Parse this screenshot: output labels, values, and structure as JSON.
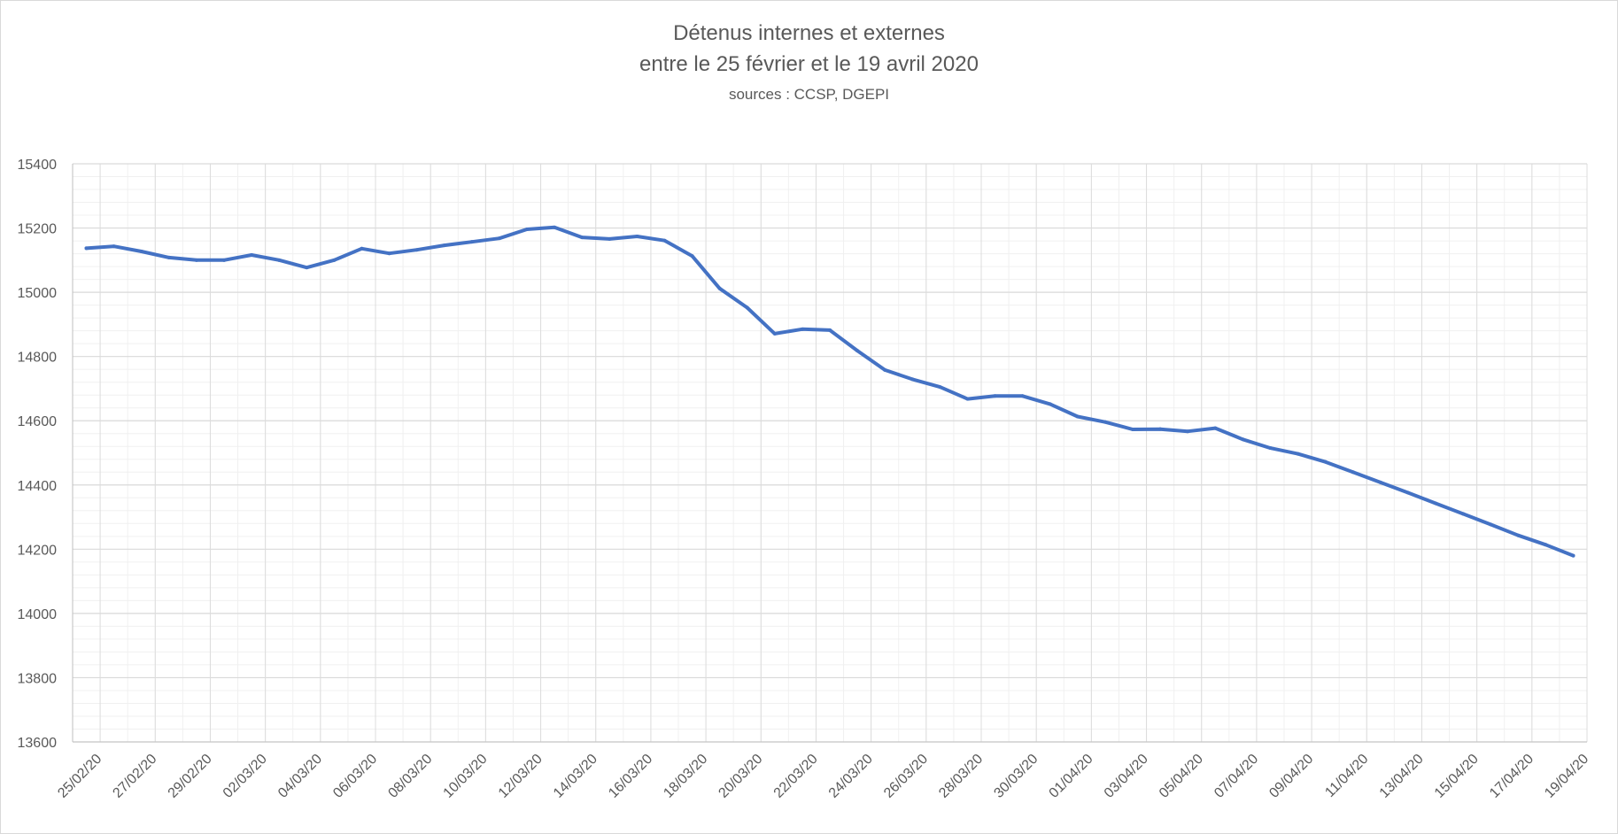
{
  "chart_data": {
    "type": "line",
    "title": "Détenus internes et externes",
    "subtitle": "entre le 25 février et le 19 avril 2020",
    "source": "sources : CCSP, DGEPI",
    "xlabel": "",
    "ylabel": "",
    "ylim": [
      13600,
      15400
    ],
    "yticks": [
      13600,
      13800,
      14000,
      14200,
      14400,
      14600,
      14800,
      15000,
      15200,
      15400
    ],
    "grid": true,
    "legend": "none",
    "line_color": "#4472c4",
    "x": [
      "25/02/20",
      "26/02/20",
      "27/02/20",
      "28/02/20",
      "29/02/20",
      "01/03/20",
      "02/03/20",
      "03/03/20",
      "04/03/20",
      "05/03/20",
      "06/03/20",
      "07/03/20",
      "08/03/20",
      "09/03/20",
      "10/03/20",
      "11/03/20",
      "12/03/20",
      "13/03/20",
      "14/03/20",
      "15/03/20",
      "16/03/20",
      "17/03/20",
      "18/03/20",
      "19/03/20",
      "20/03/20",
      "21/03/20",
      "22/03/20",
      "23/03/20",
      "24/03/20",
      "25/03/20",
      "26/03/20",
      "27/03/20",
      "28/03/20",
      "29/03/20",
      "30/03/20",
      "31/03/20",
      "01/04/20",
      "02/04/20",
      "03/04/20",
      "04/04/20",
      "05/04/20",
      "06/04/20",
      "07/04/20",
      "08/04/20",
      "09/04/20",
      "10/04/20",
      "11/04/20",
      "12/04/20",
      "13/04/20",
      "14/04/20",
      "15/04/20",
      "16/04/20",
      "17/04/20",
      "18/04/20",
      "19/04/20"
    ],
    "xtick_labels": [
      "25/02/20",
      "27/02/20",
      "29/02/20",
      "02/03/20",
      "04/03/20",
      "06/03/20",
      "08/03/20",
      "10/03/20",
      "12/03/20",
      "14/03/20",
      "16/03/20",
      "18/03/20",
      "20/03/20",
      "22/03/20",
      "24/03/20",
      "26/03/20",
      "28/03/20",
      "30/03/20",
      "01/04/20",
      "03/04/20",
      "05/04/20",
      "07/04/20",
      "09/04/20",
      "11/04/20",
      "13/04/20",
      "15/04/20",
      "17/04/20",
      "19/04/20"
    ],
    "series": [
      {
        "values": [
          15137,
          15143,
          15127,
          15108,
          15100,
          15100,
          15116,
          15100,
          15077,
          15100,
          15136,
          15121,
          15132,
          15146,
          15157,
          15168,
          15196,
          15202,
          15171,
          15166,
          15174,
          15161,
          15113,
          15012,
          14952,
          14871,
          14885,
          14882,
          14818,
          14758,
          14729,
          14705,
          14668,
          14677,
          14677,
          14652,
          14613,
          14596,
          14573,
          14574,
          14567,
          14577,
          14542,
          14515,
          14497,
          14472,
          14440,
          14408,
          14376,
          14343,
          14310,
          14277,
          14243,
          14214,
          14180
        ]
      }
    ]
  }
}
